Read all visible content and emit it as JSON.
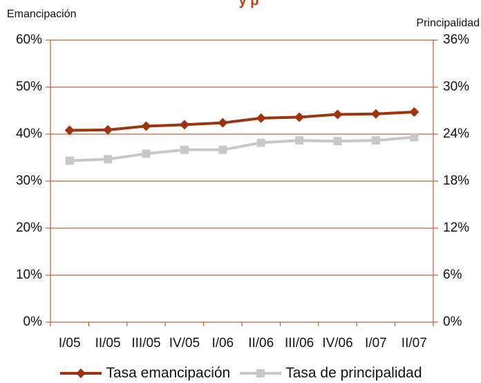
{
  "chart_data": {
    "type": "line",
    "title": "y p",
    "left_axis_label": "Emancipación",
    "right_axis_label": "Principalidad",
    "categories": [
      "I/05",
      "II/05",
      "III/05",
      "IV/05",
      "I/06",
      "II/06",
      "III/06",
      "IV/06",
      "I/07",
      "II/07"
    ],
    "left_ylim": [
      0,
      60
    ],
    "left_ticks": [
      "0%",
      "10%",
      "20%",
      "30%",
      "40%",
      "50%",
      "60%"
    ],
    "right_ylim": [
      0,
      36
    ],
    "right_ticks": [
      "0%",
      "6%",
      "12%",
      "18%",
      "24%",
      "30%",
      "36%"
    ],
    "grid": "horizontal",
    "legend_position": "bottom",
    "series": [
      {
        "name": "Tasa emancipación",
        "axis": "left",
        "color": "#a0320c",
        "marker": "diamond",
        "values": [
          40.8,
          40.9,
          41.7,
          42.0,
          42.4,
          43.4,
          43.6,
          44.2,
          44.3,
          44.7
        ]
      },
      {
        "name": "Tasa de principalidad",
        "axis": "right",
        "color": "#c8c8c8",
        "marker": "square",
        "values": [
          20.6,
          20.8,
          21.5,
          22.0,
          22.0,
          22.9,
          23.2,
          23.1,
          23.2,
          23.6
        ]
      }
    ]
  }
}
